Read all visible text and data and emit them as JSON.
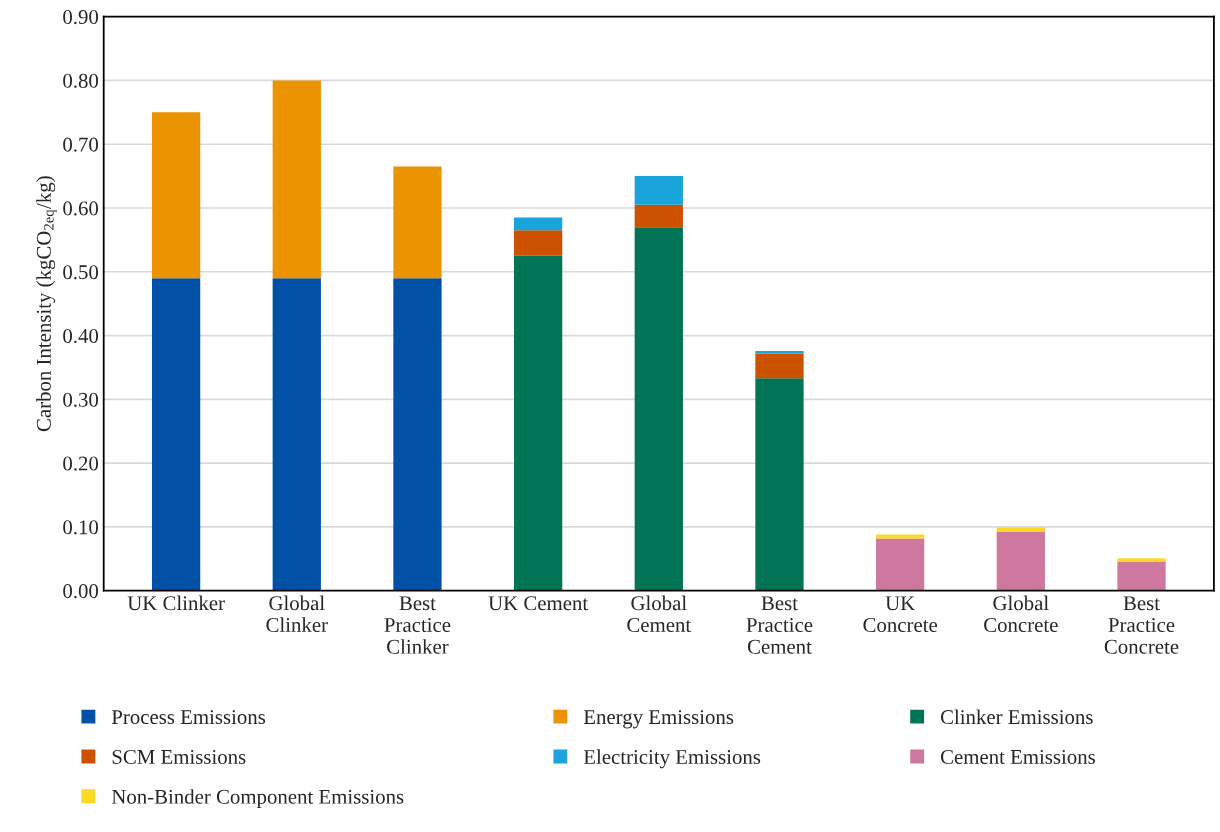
{
  "chart_data": {
    "type": "bar",
    "stacked": true,
    "ylabel": "Carbon Intensity (kgCO$_{2eq}$/kg)",
    "categories": [
      "UK Clinker",
      "Global\nClinker",
      "Best\nPractice\nClinker",
      "UK Cement",
      "Global\nCement",
      "Best\nPractice\nCement",
      "UK\nConcrete",
      "Global\nConcrete",
      "Best\nPractice\nConcrete"
    ],
    "series": [
      {
        "name": "Process Emissions",
        "color": "#0051a5",
        "values": [
          0.49,
          0.49,
          0.49,
          null,
          null,
          null,
          null,
          null,
          null
        ]
      },
      {
        "name": "Energy Emissions",
        "color": "#eb9300",
        "values": [
          0.26,
          0.31,
          0.175,
          null,
          null,
          null,
          null,
          null,
          null
        ]
      },
      {
        "name": "Clinker Emissions",
        "color": "#007455",
        "values": [
          null,
          null,
          null,
          0.525,
          0.57,
          0.333,
          null,
          null,
          null
        ]
      },
      {
        "name": "SCM Emissions",
        "color": "#cc5200",
        "values": [
          null,
          null,
          null,
          0.04,
          0.035,
          0.039,
          null,
          null,
          null
        ]
      },
      {
        "name": "Electricity Emissions",
        "color": "#19a4dc",
        "values": [
          null,
          null,
          null,
          0.02,
          0.045,
          0.004,
          null,
          null,
          null
        ]
      },
      {
        "name": "Cement Emissions",
        "color": "#cf789f",
        "values": [
          null,
          null,
          null,
          null,
          null,
          null,
          0.082,
          0.093,
          0.046
        ]
      },
      {
        "name": "Non-Binder Component Emissions",
        "color": "#fdd824",
        "values": [
          null,
          null,
          null,
          null,
          null,
          null,
          0.006,
          0.006,
          0.005
        ]
      }
    ],
    "ylim": [
      0,
      0.9
    ],
    "yticks": [
      {
        "value": 0,
        "label": "0.00"
      },
      {
        "value": 0.1,
        "label": "0.10"
      },
      {
        "value": 0.2,
        "label": "0.20"
      },
      {
        "value": 0.3,
        "label": "0.30"
      },
      {
        "value": 0.4,
        "label": "0.40"
      },
      {
        "value": 0.5,
        "label": "0.50"
      },
      {
        "value": 0.6,
        "label": "0.60"
      },
      {
        "value": 0.7,
        "label": "0.70"
      },
      {
        "value": 0.8,
        "label": "0.80"
      },
      {
        "value": 0.9,
        "label": "0.90"
      }
    ],
    "grid": "y",
    "legend": "bottom"
  }
}
